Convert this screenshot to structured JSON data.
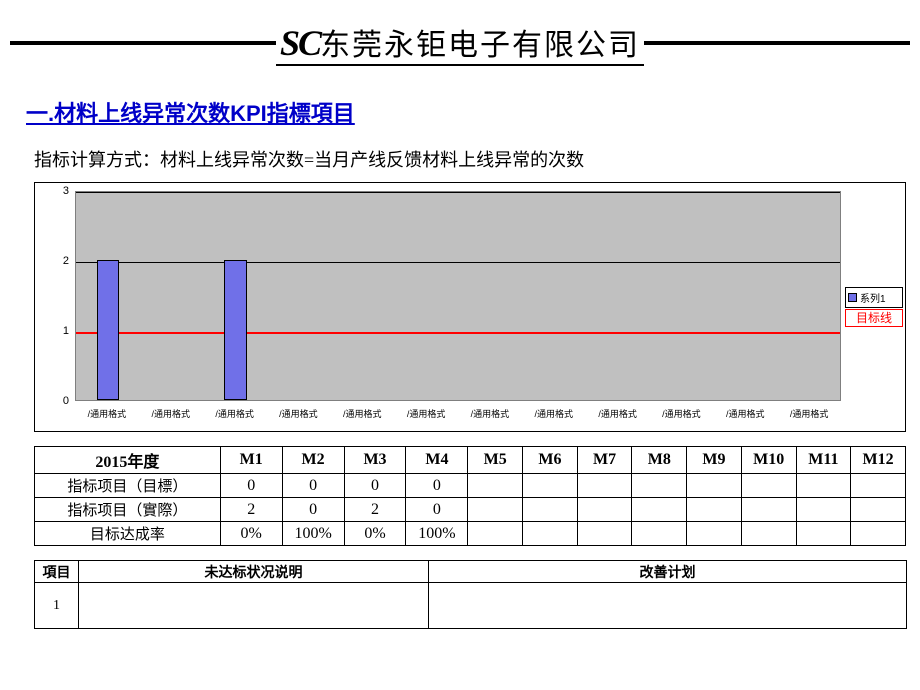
{
  "header": {
    "sc": "SC",
    "company": "东莞永钜电子有限公司"
  },
  "section_title": "一.材料上线异常次数KPI指標項目",
  "formula": "指标计算方式：材料上线异常次数=当月产线反馈材料上线异常的次数",
  "chart": {
    "type": "bar",
    "background_color": "#c0c0c0",
    "bar_color": "#7070e8",
    "grid_color": "#000000",
    "target_line_color": "#ff0000",
    "target_label": "目标线",
    "legend_label": "系列1",
    "ylim": [
      0,
      3
    ],
    "ytick_step": 1,
    "y_ticks": [
      0,
      1,
      2,
      3
    ],
    "target_value": 1,
    "categories": [
      "/通用格式",
      "/通用格式",
      "/通用格式",
      "/通用格式",
      "/通用格式",
      "/通用格式",
      "/通用格式",
      "/通用格式",
      "/通用格式",
      "/通用格式",
      "/通用格式",
      "/通用格式"
    ],
    "values": [
      2,
      0,
      2,
      0,
      0,
      0,
      0,
      0,
      0,
      0,
      0,
      0
    ],
    "bar_width_ratio": 0.35,
    "x_label_fontsize": 9,
    "y_label_fontsize": 11
  },
  "table": {
    "year_header": "2015年度",
    "months": [
      "M1",
      "M2",
      "M3",
      "M4",
      "M5",
      "M6",
      "M7",
      "M8",
      "M9",
      "M10",
      "M11",
      "M12"
    ],
    "rows": [
      {
        "label": "指标项目（目標）",
        "cells": [
          "0",
          "0",
          "0",
          "0",
          "",
          "",
          "",
          "",
          "",
          "",
          "",
          ""
        ]
      },
      {
        "label": "指标项目（實際）",
        "cells": [
          "2",
          "0",
          "2",
          "0",
          "",
          "",
          "",
          "",
          "",
          "",
          "",
          ""
        ]
      },
      {
        "label": "目标达成率",
        "cells": [
          "0%",
          "100%",
          "0%",
          "100%",
          "",
          "",
          "",
          "",
          "",
          "",
          "",
          ""
        ]
      }
    ]
  },
  "plan_table": {
    "headers": [
      "項目",
      "未达标状况说明",
      "改善计划"
    ],
    "rows": [
      {
        "num": "1",
        "desc": "",
        "plan": ""
      }
    ]
  }
}
